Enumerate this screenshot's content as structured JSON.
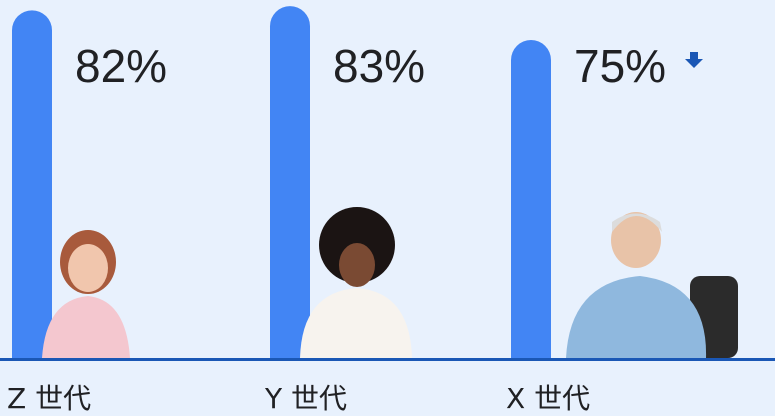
{
  "chart_data": {
    "type": "bar",
    "categories": [
      "Z 世代",
      "Y 世代",
      "X 世代"
    ],
    "values": [
      82,
      83,
      75
    ],
    "value_labels": [
      "82%",
      "83%",
      "75%"
    ],
    "color": "#4285f4"
  }
}
